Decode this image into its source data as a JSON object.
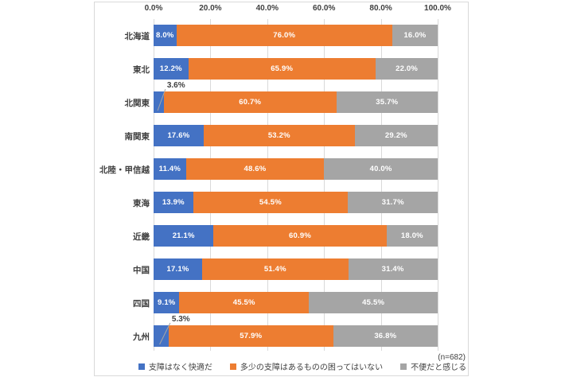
{
  "chart_data": {
    "type": "bar",
    "orientation": "horizontal_stacked",
    "title": "",
    "xlabel": "",
    "ylabel": "",
    "xlim": [
      0,
      100
    ],
    "x_ticks": [
      "0.0%",
      "20.0%",
      "40.0%",
      "60.0%",
      "80.0%",
      "100.0%"
    ],
    "grid": true,
    "legend_position": "bottom",
    "value_suffix": "%",
    "categories": [
      "北海道",
      "東北",
      "北関東",
      "南関東",
      "北陸・甲信越",
      "東海",
      "近畿",
      "中国",
      "四国",
      "九州"
    ],
    "series": [
      {
        "name": "支障はなく快適だ",
        "color": "#4472c4",
        "values": [
          8.0,
          12.2,
          3.6,
          17.6,
          11.4,
          13.9,
          21.1,
          17.1,
          9.1,
          5.3
        ]
      },
      {
        "name": "多少の支障はあるものの困ってはいない",
        "color": "#ed7d31",
        "values": [
          76.0,
          65.9,
          60.7,
          53.2,
          48.6,
          54.5,
          60.9,
          51.4,
          45.5,
          57.9
        ]
      },
      {
        "name": "不便だと感じる",
        "color": "#a5a5a5",
        "values": [
          16.0,
          22.0,
          35.7,
          29.2,
          40.0,
          31.7,
          18.0,
          31.4,
          45.5,
          36.8
        ]
      }
    ],
    "n_label": "(n=682)"
  },
  "colors": {
    "grid": "#d9d9d9",
    "frame": "#d9d9d9",
    "text": "#3f3f3f",
    "value_label": "#ffffff",
    "leader_line": "#a6a6a6"
  }
}
